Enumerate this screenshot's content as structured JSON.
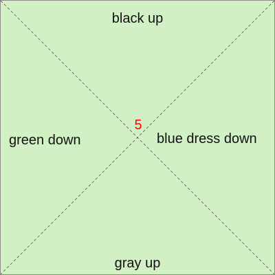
{
  "board": {
    "background": "#d1f0c4",
    "line_color": "#555555",
    "center_value": "5",
    "center_value_color": "#ff0000",
    "zones": {
      "top": "black up",
      "bottom": "gray up",
      "left": "green down",
      "right": "blue dress down"
    }
  }
}
